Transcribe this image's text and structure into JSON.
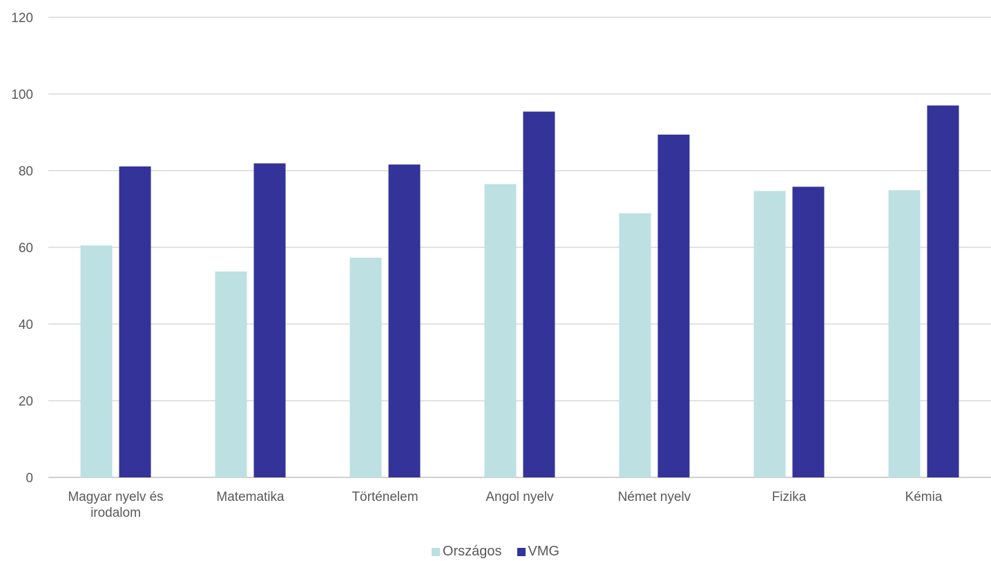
{
  "chart_data": {
    "type": "bar",
    "categories": [
      [
        "Magyar nyelv és",
        "irodalom"
      ],
      [
        "Matematika"
      ],
      [
        "Történelem"
      ],
      [
        "Angol nyelv"
      ],
      [
        "Német nyelv"
      ],
      [
        "Fizika"
      ],
      [
        "Kémia"
      ]
    ],
    "series": [
      {
        "name": "Országos",
        "color": "#bde0e3",
        "values": [
          60.5,
          53.7,
          57.3,
          76.5,
          68.9,
          74.7,
          74.9
        ]
      },
      {
        "name": "VMG",
        "color": "#333399",
        "values": [
          81.1,
          81.9,
          81.6,
          95.4,
          89.4,
          75.8,
          97.0
        ]
      }
    ],
    "ylim": [
      0,
      120
    ],
    "yticks": [
      "0",
      "20",
      "40",
      "60",
      "80",
      "100",
      "120"
    ],
    "grid": true,
    "legend_position": "bottom"
  }
}
